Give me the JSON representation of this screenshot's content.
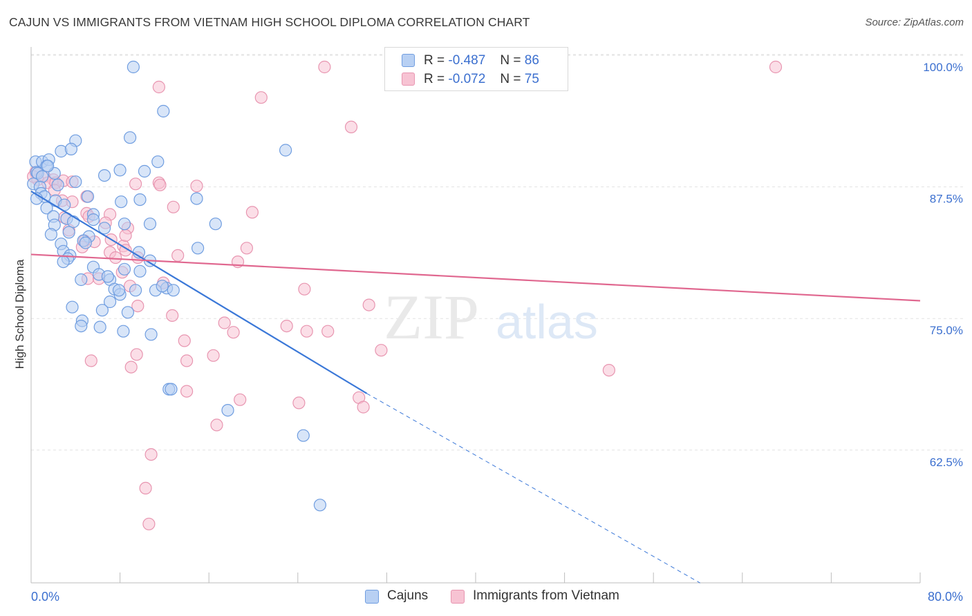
{
  "title": "CAJUN VS IMMIGRANTS FROM VIETNAM HIGH SCHOOL DIPLOMA CORRELATION CHART",
  "source": "Source: ZipAtlas.com",
  "watermark": {
    "zip": "ZIP",
    "atlas": "atlas"
  },
  "colors": {
    "blue": "#3b78d8",
    "blue_fill": "#b8d0f3",
    "pink": "#e0678f",
    "pink_fill": "#f7c3d3",
    "value_text": "#3b6fcf"
  },
  "legend": {
    "rows": [
      {
        "r_label": "R =",
        "r_value": "-0.487",
        "n_label": "N =",
        "n_value": "86"
      },
      {
        "r_label": "R =",
        "r_value": "-0.072",
        "n_label": "N =",
        "n_value": "75"
      }
    ]
  },
  "bottom_legend": [
    "Cajuns",
    "Immigrants from Vietnam"
  ],
  "chart_data": {
    "type": "scatter",
    "title": "CAJUN VS IMMIGRANTS FROM VIETNAM HIGH SCHOOL DIPLOMA CORRELATION CHART",
    "xlabel": "",
    "ylabel": "High School Diploma",
    "xlim": [
      0,
      80
    ],
    "ylim": [
      51,
      101.5
    ],
    "x_tick_labels": [
      "0.0%",
      "80.0%"
    ],
    "y_tick_labels": [
      "100.0%",
      "87.5%",
      "75.0%",
      "62.5%"
    ],
    "y_ticks": [
      100,
      87.5,
      75,
      62.5
    ],
    "grid": "horizontal dashed",
    "series": [
      {
        "name": "Cajuns",
        "r": -0.487,
        "n": 86,
        "trend": {
          "x0": 0,
          "y0": 88.2,
          "x1": 30.2,
          "y1": 69.0,
          "dashed_to_x": 60.2,
          "dashed_to_y": 51.0
        },
        "points": [
          [
            9.2,
            100.0
          ],
          [
            11.9,
            95.8
          ],
          [
            8.9,
            93.3
          ],
          [
            4.0,
            93.0
          ],
          [
            2.7,
            92.0
          ],
          [
            3.6,
            92.2
          ],
          [
            22.9,
            92.1
          ],
          [
            0.4,
            91.0
          ],
          [
            1.0,
            91.0
          ],
          [
            1.6,
            91.2
          ],
          [
            1.4,
            90.6
          ],
          [
            11.4,
            91.0
          ],
          [
            8.0,
            90.2
          ],
          [
            10.2,
            90.1
          ],
          [
            0.5,
            90.0
          ],
          [
            0.6,
            89.9
          ],
          [
            1.0,
            89.6
          ],
          [
            2.1,
            89.9
          ],
          [
            6.6,
            89.7
          ],
          [
            4.0,
            89.1
          ],
          [
            0.2,
            88.9
          ],
          [
            0.8,
            88.6
          ],
          [
            2.4,
            88.8
          ],
          [
            0.9,
            88.0
          ],
          [
            1.2,
            87.7
          ],
          [
            0.5,
            87.5
          ],
          [
            5.1,
            87.7
          ],
          [
            2.2,
            87.3
          ],
          [
            8.1,
            87.2
          ],
          [
            9.8,
            87.4
          ],
          [
            14.9,
            87.5
          ],
          [
            3.0,
            86.9
          ],
          [
            1.4,
            86.6
          ],
          [
            5.6,
            86.0
          ],
          [
            2.0,
            85.8
          ],
          [
            3.2,
            85.6
          ],
          [
            5.6,
            85.5
          ],
          [
            3.8,
            85.3
          ],
          [
            10.7,
            85.1
          ],
          [
            8.4,
            85.1
          ],
          [
            16.6,
            85.1
          ],
          [
            2.1,
            85.0
          ],
          [
            6.6,
            84.7
          ],
          [
            1.8,
            84.1
          ],
          [
            3.4,
            84.3
          ],
          [
            5.2,
            83.9
          ],
          [
            4.7,
            83.5
          ],
          [
            4.9,
            83.3
          ],
          [
            2.7,
            83.2
          ],
          [
            15.0,
            82.8
          ],
          [
            2.9,
            82.5
          ],
          [
            3.5,
            82.1
          ],
          [
            9.7,
            82.4
          ],
          [
            3.3,
            81.8
          ],
          [
            2.9,
            81.5
          ],
          [
            10.7,
            81.6
          ],
          [
            5.6,
            81.0
          ],
          [
            8.4,
            80.8
          ],
          [
            9.8,
            80.6
          ],
          [
            6.1,
            80.3
          ],
          [
            4.5,
            79.8
          ],
          [
            7.1,
            79.8
          ],
          [
            6.9,
            80.1
          ],
          [
            12.2,
            79.0
          ],
          [
            7.5,
            78.9
          ],
          [
            11.2,
            78.8
          ],
          [
            9.4,
            78.8
          ],
          [
            12.8,
            78.8
          ],
          [
            8.0,
            78.4
          ],
          [
            11.8,
            79.2
          ],
          [
            3.7,
            77.2
          ],
          [
            7.1,
            77.7
          ],
          [
            6.4,
            76.9
          ],
          [
            8.7,
            76.7
          ],
          [
            4.6,
            75.9
          ],
          [
            4.5,
            75.4
          ],
          [
            6.2,
            75.3
          ],
          [
            8.3,
            74.9
          ],
          [
            10.8,
            74.6
          ],
          [
            12.4,
            69.4
          ],
          [
            12.6,
            69.4
          ],
          [
            17.7,
            67.4
          ],
          [
            24.5,
            65.0
          ],
          [
            26.0,
            58.4
          ],
          [
            1.5,
            90.6
          ],
          [
            7.9,
            78.8
          ]
        ]
      },
      {
        "name": "Immigrants from Vietnam",
        "r": -0.072,
        "n": 75,
        "trend": {
          "x0": 0,
          "y0": 82.2,
          "x1": 80,
          "y1": 77.8
        },
        "points": [
          [
            26.4,
            100.0
          ],
          [
            67.0,
            100.0
          ],
          [
            11.5,
            98.1
          ],
          [
            20.7,
            97.1
          ],
          [
            28.8,
            94.3
          ],
          [
            0.4,
            90.0
          ],
          [
            1.2,
            89.6
          ],
          [
            0.6,
            89.3
          ],
          [
            2.0,
            89.3
          ],
          [
            2.9,
            89.2
          ],
          [
            1.5,
            89.0
          ],
          [
            2.2,
            89.0
          ],
          [
            9.4,
            88.9
          ],
          [
            11.5,
            89.0
          ],
          [
            11.6,
            88.8
          ],
          [
            14.9,
            88.7
          ],
          [
            2.1,
            88.3
          ],
          [
            5.0,
            87.7
          ],
          [
            2.8,
            87.3
          ],
          [
            3.7,
            87.2
          ],
          [
            12.8,
            86.7
          ],
          [
            19.9,
            86.2
          ],
          [
            5.0,
            86.1
          ],
          [
            7.1,
            86.0
          ],
          [
            5.2,
            85.8
          ],
          [
            3.0,
            85.7
          ],
          [
            6.7,
            85.2
          ],
          [
            8.7,
            84.7
          ],
          [
            3.4,
            84.5
          ],
          [
            7.2,
            83.6
          ],
          [
            4.8,
            83.5
          ],
          [
            5.7,
            83.4
          ],
          [
            8.3,
            83.0
          ],
          [
            8.5,
            82.6
          ],
          [
            4.6,
            82.9
          ],
          [
            19.4,
            82.8
          ],
          [
            7.1,
            82.4
          ],
          [
            13.2,
            82.1
          ],
          [
            7.6,
            81.9
          ],
          [
            9.6,
            81.9
          ],
          [
            18.6,
            81.5
          ],
          [
            8.2,
            80.5
          ],
          [
            5.1,
            79.9
          ],
          [
            6.1,
            79.9
          ],
          [
            11.9,
            79.5
          ],
          [
            8.9,
            79.2
          ],
          [
            24.6,
            78.9
          ],
          [
            9.6,
            77.3
          ],
          [
            30.4,
            77.4
          ],
          [
            12.7,
            76.4
          ],
          [
            17.4,
            75.7
          ],
          [
            23.0,
            75.4
          ],
          [
            18.2,
            74.8
          ],
          [
            24.8,
            74.9
          ],
          [
            26.7,
            74.9
          ],
          [
            13.8,
            74.0
          ],
          [
            31.5,
            73.1
          ],
          [
            52.0,
            71.2
          ],
          [
            9.5,
            72.7
          ],
          [
            16.4,
            72.6
          ],
          [
            5.4,
            72.1
          ],
          [
            14.0,
            72.1
          ],
          [
            9.0,
            71.5
          ],
          [
            14.0,
            69.2
          ],
          [
            18.8,
            68.4
          ],
          [
            24.1,
            68.1
          ],
          [
            29.5,
            68.6
          ],
          [
            29.9,
            67.7
          ],
          [
            16.7,
            66.0
          ],
          [
            10.8,
            63.2
          ],
          [
            10.3,
            60.0
          ],
          [
            10.6,
            56.6
          ],
          [
            0.2,
            89.6
          ],
          [
            3.7,
            89.1
          ],
          [
            8.5,
            84.0
          ]
        ]
      }
    ]
  }
}
